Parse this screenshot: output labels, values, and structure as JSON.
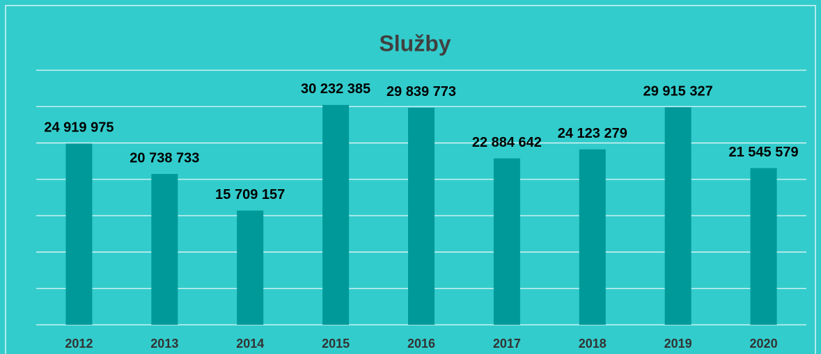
{
  "chart_data": {
    "type": "bar",
    "title": "Služby",
    "categories": [
      "2012",
      "2013",
      "2014",
      "2015",
      "2016",
      "2017",
      "2018",
      "2019",
      "2020"
    ],
    "values": [
      24919975,
      20738733,
      15709157,
      30232385,
      29839773,
      22884642,
      24123279,
      29915327,
      21545579
    ],
    "value_labels": [
      "24 919 975",
      "20 738 733",
      "15 709 157",
      "30 232 385",
      "29 839 773",
      "22 884 642",
      "24 123 279",
      "29 915 327",
      "21 545 579"
    ],
    "color": "#009999",
    "ylim": [
      0,
      35000000
    ],
    "yticks": [
      0,
      5000000,
      10000000,
      15000000,
      20000000,
      25000000,
      30000000,
      35000000
    ],
    "grid": true
  }
}
